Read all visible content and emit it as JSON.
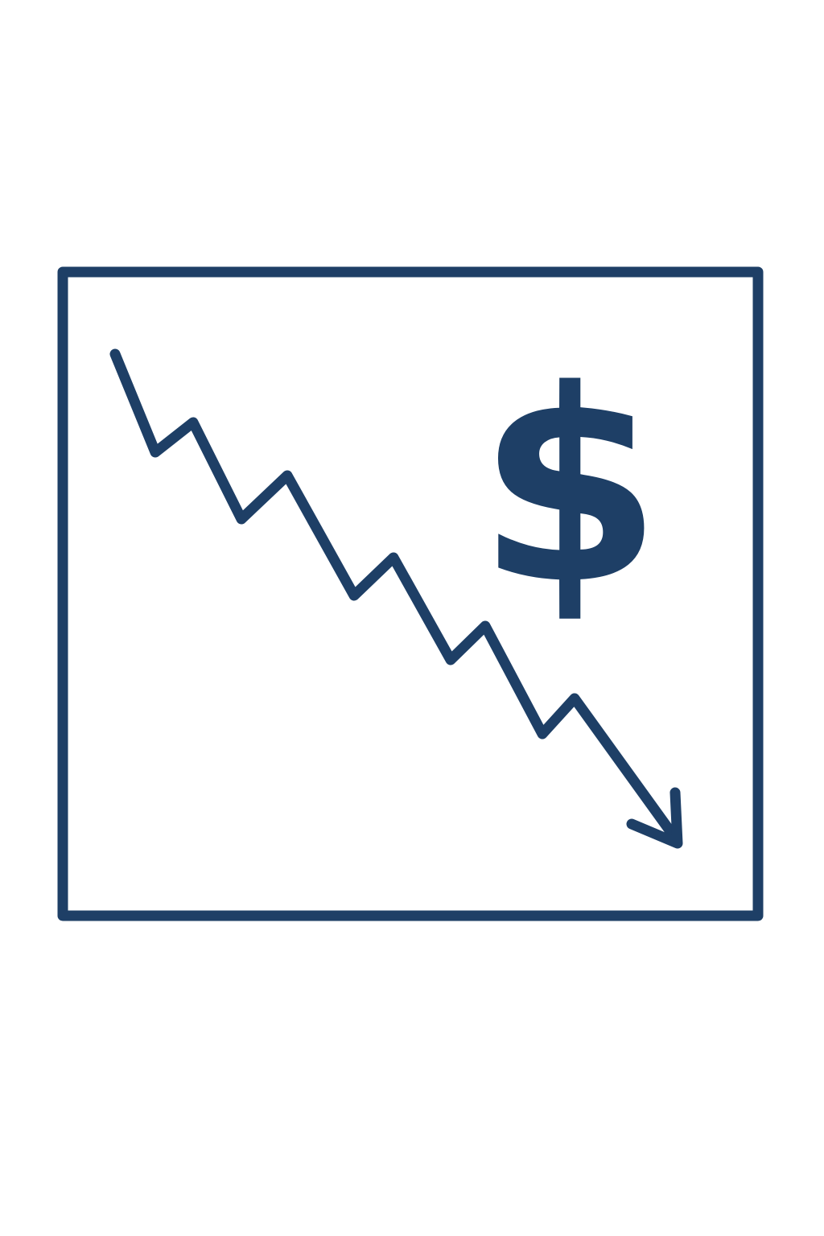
{
  "icon": {
    "name": "decreasing-dollar-chart-icon",
    "symbol": "$",
    "colors": {
      "stroke": "#1e3f66",
      "background": "#ffffff"
    }
  }
}
